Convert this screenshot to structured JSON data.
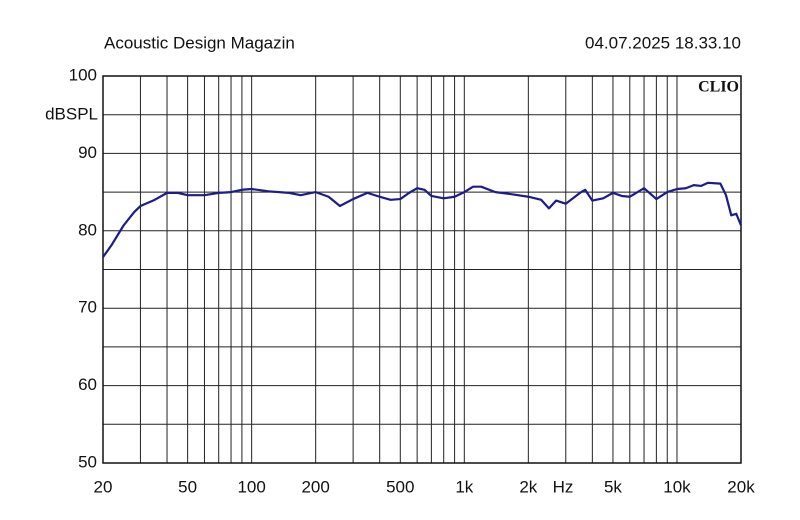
{
  "chart_data": {
    "type": "line",
    "title": "Acoustic Design Magazin",
    "subtitle": "04.07.2025 18.33.10",
    "logo": "CLIO",
    "x_label": "Hz",
    "y_label": "dBSPL",
    "x_log": true,
    "grid": true,
    "color": "#1c1c8c",
    "xlim": [
      20,
      20000
    ],
    "ylim": [
      50,
      100
    ],
    "xticks": [
      20,
      50,
      100,
      200,
      500,
      {
        "value": 1000,
        "label": "1k"
      },
      {
        "value": 2000,
        "label": "2k"
      },
      {
        "value": 5000,
        "label": "5k"
      },
      {
        "value": 10000,
        "label": "10k"
      },
      {
        "value": 20000,
        "label": "20k"
      }
    ],
    "xminorticks": [
      30,
      40,
      60,
      70,
      80,
      90,
      300,
      400,
      600,
      700,
      800,
      900,
      3000,
      4000,
      6000,
      7000,
      8000,
      9000
    ],
    "yticks": [
      50,
      60,
      70,
      80,
      90,
      100
    ],
    "yminorticks": [
      55,
      65,
      75,
      85,
      95
    ],
    "x": [
      20,
      22,
      25,
      28,
      30,
      35,
      40,
      45,
      50,
      60,
      70,
      80,
      90,
      100,
      120,
      150,
      170,
      200,
      230,
      260,
      300,
      350,
      400,
      450,
      500,
      550,
      600,
      650,
      700,
      800,
      900,
      1000,
      1100,
      1200,
      1400,
      1600,
      2000,
      2300,
      2500,
      2700,
      3000,
      3500,
      3700,
      4000,
      4500,
      5000,
      5500,
      6000,
      7000,
      8000,
      9000,
      10000,
      11000,
      12000,
      13000,
      14000,
      16000,
      17000,
      18000,
      19000,
      20000
    ],
    "values": [
      76.6,
      78.2,
      80.7,
      82.4,
      83.2,
      84.0,
      84.9,
      84.9,
      84.6,
      84.6,
      84.9,
      85.0,
      85.3,
      85.4,
      85.1,
      84.9,
      84.6,
      85.0,
      84.4,
      83.2,
      84.1,
      84.9,
      84.4,
      84.0,
      84.1,
      84.9,
      85.5,
      85.3,
      84.5,
      84.2,
      84.4,
      85.0,
      85.7,
      85.7,
      85.0,
      84.8,
      84.4,
      84.0,
      82.9,
      83.9,
      83.5,
      84.9,
      85.3,
      83.9,
      84.2,
      84.9,
      84.5,
      84.4,
      85.5,
      84.1,
      85.0,
      85.4,
      85.5,
      85.9,
      85.8,
      86.2,
      86.1,
      84.6,
      82.0,
      82.2,
      80.7
    ]
  }
}
